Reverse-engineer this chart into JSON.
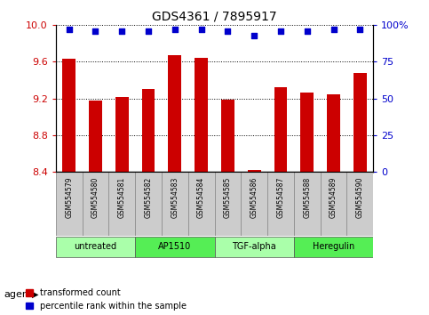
{
  "title": "GDS4361 / 7895917",
  "samples": [
    "GSM554579",
    "GSM554580",
    "GSM554581",
    "GSM554582",
    "GSM554583",
    "GSM554584",
    "GSM554585",
    "GSM554586",
    "GSM554587",
    "GSM554588",
    "GSM554589",
    "GSM554590"
  ],
  "transformed_count": [
    9.63,
    9.18,
    9.21,
    9.3,
    9.67,
    9.64,
    9.19,
    8.42,
    9.32,
    9.26,
    9.24,
    9.48
  ],
  "percentile_rank": [
    97,
    96,
    96,
    96,
    97,
    97,
    96,
    93,
    96,
    96,
    97,
    97
  ],
  "ylim_left": [
    8.4,
    10.0
  ],
  "ylim_right": [
    0,
    100
  ],
  "yticks_left": [
    8.4,
    8.8,
    9.2,
    9.6,
    10.0
  ],
  "yticks_right": [
    0,
    25,
    50,
    75,
    100
  ],
  "bar_color": "#CC0000",
  "dot_color": "#0000CC",
  "grid_color": "#000000",
  "agent_groups": [
    {
      "label": "untreated",
      "start": 0,
      "end": 3,
      "color": "#AAFFAA"
    },
    {
      "label": "AP1510",
      "start": 3,
      "end": 6,
      "color": "#55EE55"
    },
    {
      "label": "TGF-alpha",
      "start": 6,
      "end": 9,
      "color": "#AAFFAA"
    },
    {
      "label": "Heregulin",
      "start": 9,
      "end": 12,
      "color": "#55EE55"
    }
  ],
  "legend_bar_label": "transformed count",
  "legend_dot_label": "percentile rank within the sample",
  "xlabel_agent": "agent",
  "bg_color": "#FFFFFF",
  "plot_bg": "#FFFFFF",
  "tick_label_color_left": "#CC0000",
  "tick_label_color_right": "#0000CC",
  "sample_label_bg": "#CCCCCC",
  "bar_width": 0.5
}
